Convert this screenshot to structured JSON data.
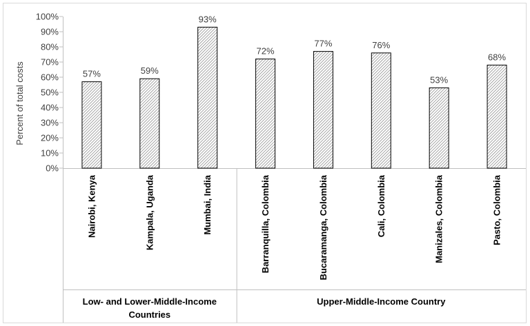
{
  "chart_data": {
    "type": "bar",
    "ylabel": "Percent of total costs",
    "ylim": [
      0,
      100
    ],
    "y_tick_labels": [
      "0%",
      "10%",
      "20%",
      "30%",
      "40%",
      "50%",
      "60%",
      "70%",
      "80%",
      "90%",
      "100%"
    ],
    "categories": [
      "Nairobi, Kenya",
      "Kampala, Uganda",
      "Mumbai, India",
      "Barranquilla, Colombia",
      "Bucaramanga, Colombia",
      "Cali, Colombia",
      "Manizales, Colombia",
      "Pasto, Colombia"
    ],
    "values": [
      57,
      59,
      93,
      72,
      77,
      76,
      53,
      68
    ],
    "data_labels": [
      "57%",
      "59%",
      "93%",
      "72%",
      "77%",
      "76%",
      "53%",
      "68%"
    ],
    "groups": [
      {
        "label": "Low- and Lower-Middle-Income Countries",
        "count": 3
      },
      {
        "label": "Upper-Middle-Income Country",
        "count": 5
      }
    ],
    "grid": false,
    "bar_fill": "#d9d9d9",
    "bar_stroke": "#000000"
  }
}
